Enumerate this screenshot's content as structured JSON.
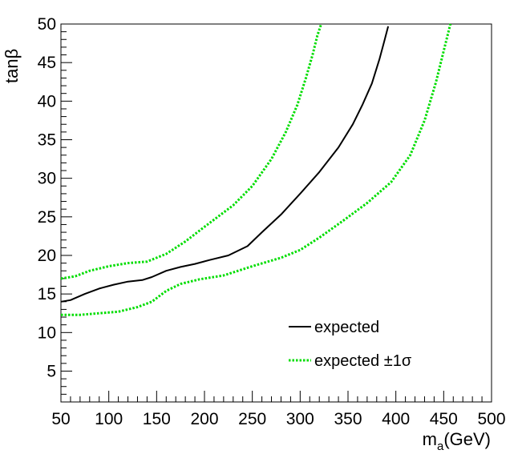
{
  "chart_data": {
    "type": "line",
    "title": "",
    "xlabel_main": "m",
    "xlabel_sub": "a",
    "xlabel_unit": "(GeV)",
    "ylabel": "tanβ",
    "xlim": [
      50,
      500
    ],
    "ylim": [
      1,
      50
    ],
    "grid": false,
    "legend_position": "bottom-right",
    "x_ticks": [
      50,
      100,
      150,
      200,
      250,
      300,
      350,
      400,
      450,
      500
    ],
    "y_ticks": [
      5,
      10,
      15,
      20,
      25,
      30,
      35,
      40,
      45,
      50
    ],
    "series": [
      {
        "name": "expected",
        "style": "solid",
        "color": "#000000",
        "points": [
          [
            50,
            14.0
          ],
          [
            60,
            14.2
          ],
          [
            75,
            15.0
          ],
          [
            90,
            15.7
          ],
          [
            105,
            16.2
          ],
          [
            120,
            16.6
          ],
          [
            135,
            16.8
          ],
          [
            145,
            17.2
          ],
          [
            160,
            18.0
          ],
          [
            175,
            18.5
          ],
          [
            190,
            18.9
          ],
          [
            205,
            19.4
          ],
          [
            225,
            20.0
          ],
          [
            245,
            21.2
          ],
          [
            260,
            23.0
          ],
          [
            280,
            25.3
          ],
          [
            300,
            28.0
          ],
          [
            320,
            30.8
          ],
          [
            340,
            34.0
          ],
          [
            355,
            37.0
          ],
          [
            365,
            39.5
          ],
          [
            375,
            42.3
          ],
          [
            383,
            45.5
          ],
          [
            388,
            47.8
          ],
          [
            392,
            49.7
          ]
        ]
      },
      {
        "name": "expected ±1σ",
        "style": "dotted",
        "color": "#00dd00",
        "points": [
          [
            50,
            17.0
          ],
          [
            65,
            17.3
          ],
          [
            80,
            18.0
          ],
          [
            100,
            18.6
          ],
          [
            120,
            19.0
          ],
          [
            140,
            19.2
          ],
          [
            160,
            20.2
          ],
          [
            180,
            21.8
          ],
          [
            200,
            23.7
          ],
          [
            230,
            26.5
          ],
          [
            250,
            29.0
          ],
          [
            270,
            32.5
          ],
          [
            285,
            36.0
          ],
          [
            297,
            39.5
          ],
          [
            306,
            43.0
          ],
          [
            313,
            46.0
          ],
          [
            318,
            48.5
          ],
          [
            322,
            50.0
          ]
        ]
      },
      {
        "name": "",
        "style": "dotted",
        "color": "#00dd00",
        "points": [
          [
            50,
            12.3
          ],
          [
            70,
            12.3
          ],
          [
            90,
            12.5
          ],
          [
            110,
            12.7
          ],
          [
            130,
            13.3
          ],
          [
            145,
            14.0
          ],
          [
            160,
            15.4
          ],
          [
            175,
            16.3
          ],
          [
            195,
            16.9
          ],
          [
            220,
            17.4
          ],
          [
            250,
            18.6
          ],
          [
            280,
            19.7
          ],
          [
            300,
            20.7
          ],
          [
            320,
            22.3
          ],
          [
            345,
            24.5
          ],
          [
            370,
            26.8
          ],
          [
            395,
            29.5
          ],
          [
            415,
            33.0
          ],
          [
            430,
            37.5
          ],
          [
            442,
            42.5
          ],
          [
            450,
            46.5
          ],
          [
            457,
            50.0
          ]
        ]
      }
    ],
    "legend": [
      {
        "label": "expected",
        "style": "solid",
        "color": "#000000"
      },
      {
        "label": "expected ±1σ",
        "style": "dotted",
        "color": "#00dd00"
      }
    ]
  }
}
